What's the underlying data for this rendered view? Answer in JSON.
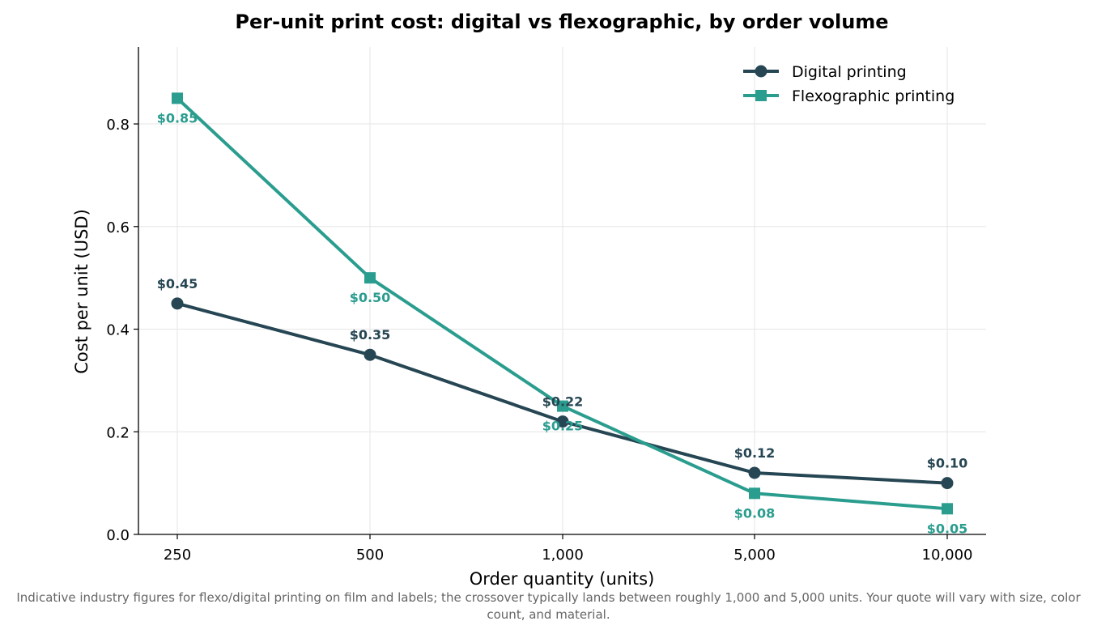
{
  "chart_data": {
    "type": "line",
    "title": "Per-unit print cost: digital vs flexographic, by order volume",
    "xlabel": "Order quantity (units)",
    "ylabel": "Cost per unit (USD)",
    "categories": [
      "250",
      "500",
      "1,000",
      "5,000",
      "10,000"
    ],
    "y_ticks": [
      "0.0",
      "0.2",
      "0.4",
      "0.6",
      "0.8"
    ],
    "ylim": [
      0,
      0.95
    ],
    "grid": true,
    "legend_position": "top-right",
    "series": [
      {
        "name": "Digital printing",
        "color": "#264653",
        "marker": "circle",
        "values": [
          0.45,
          0.35,
          0.22,
          0.12,
          0.1
        ],
        "labels": [
          "$0.45",
          "$0.35",
          "$0.22",
          "$0.12",
          "$0.10"
        ],
        "label_position": "above"
      },
      {
        "name": "Flexographic printing",
        "color": "#2a9d8f",
        "marker": "square",
        "values": [
          0.85,
          0.5,
          0.25,
          0.08,
          0.05
        ],
        "labels": [
          "$0.85",
          "$0.50",
          "$0.25",
          "$0.08",
          "$0.05"
        ],
        "label_position": "below"
      }
    ]
  },
  "caption": "Indicative industry figures for flexo/digital printing on film and labels; the crossover typically lands between roughly 1,000 and 5,000 units. Your quote will vary with size, color count, and material."
}
